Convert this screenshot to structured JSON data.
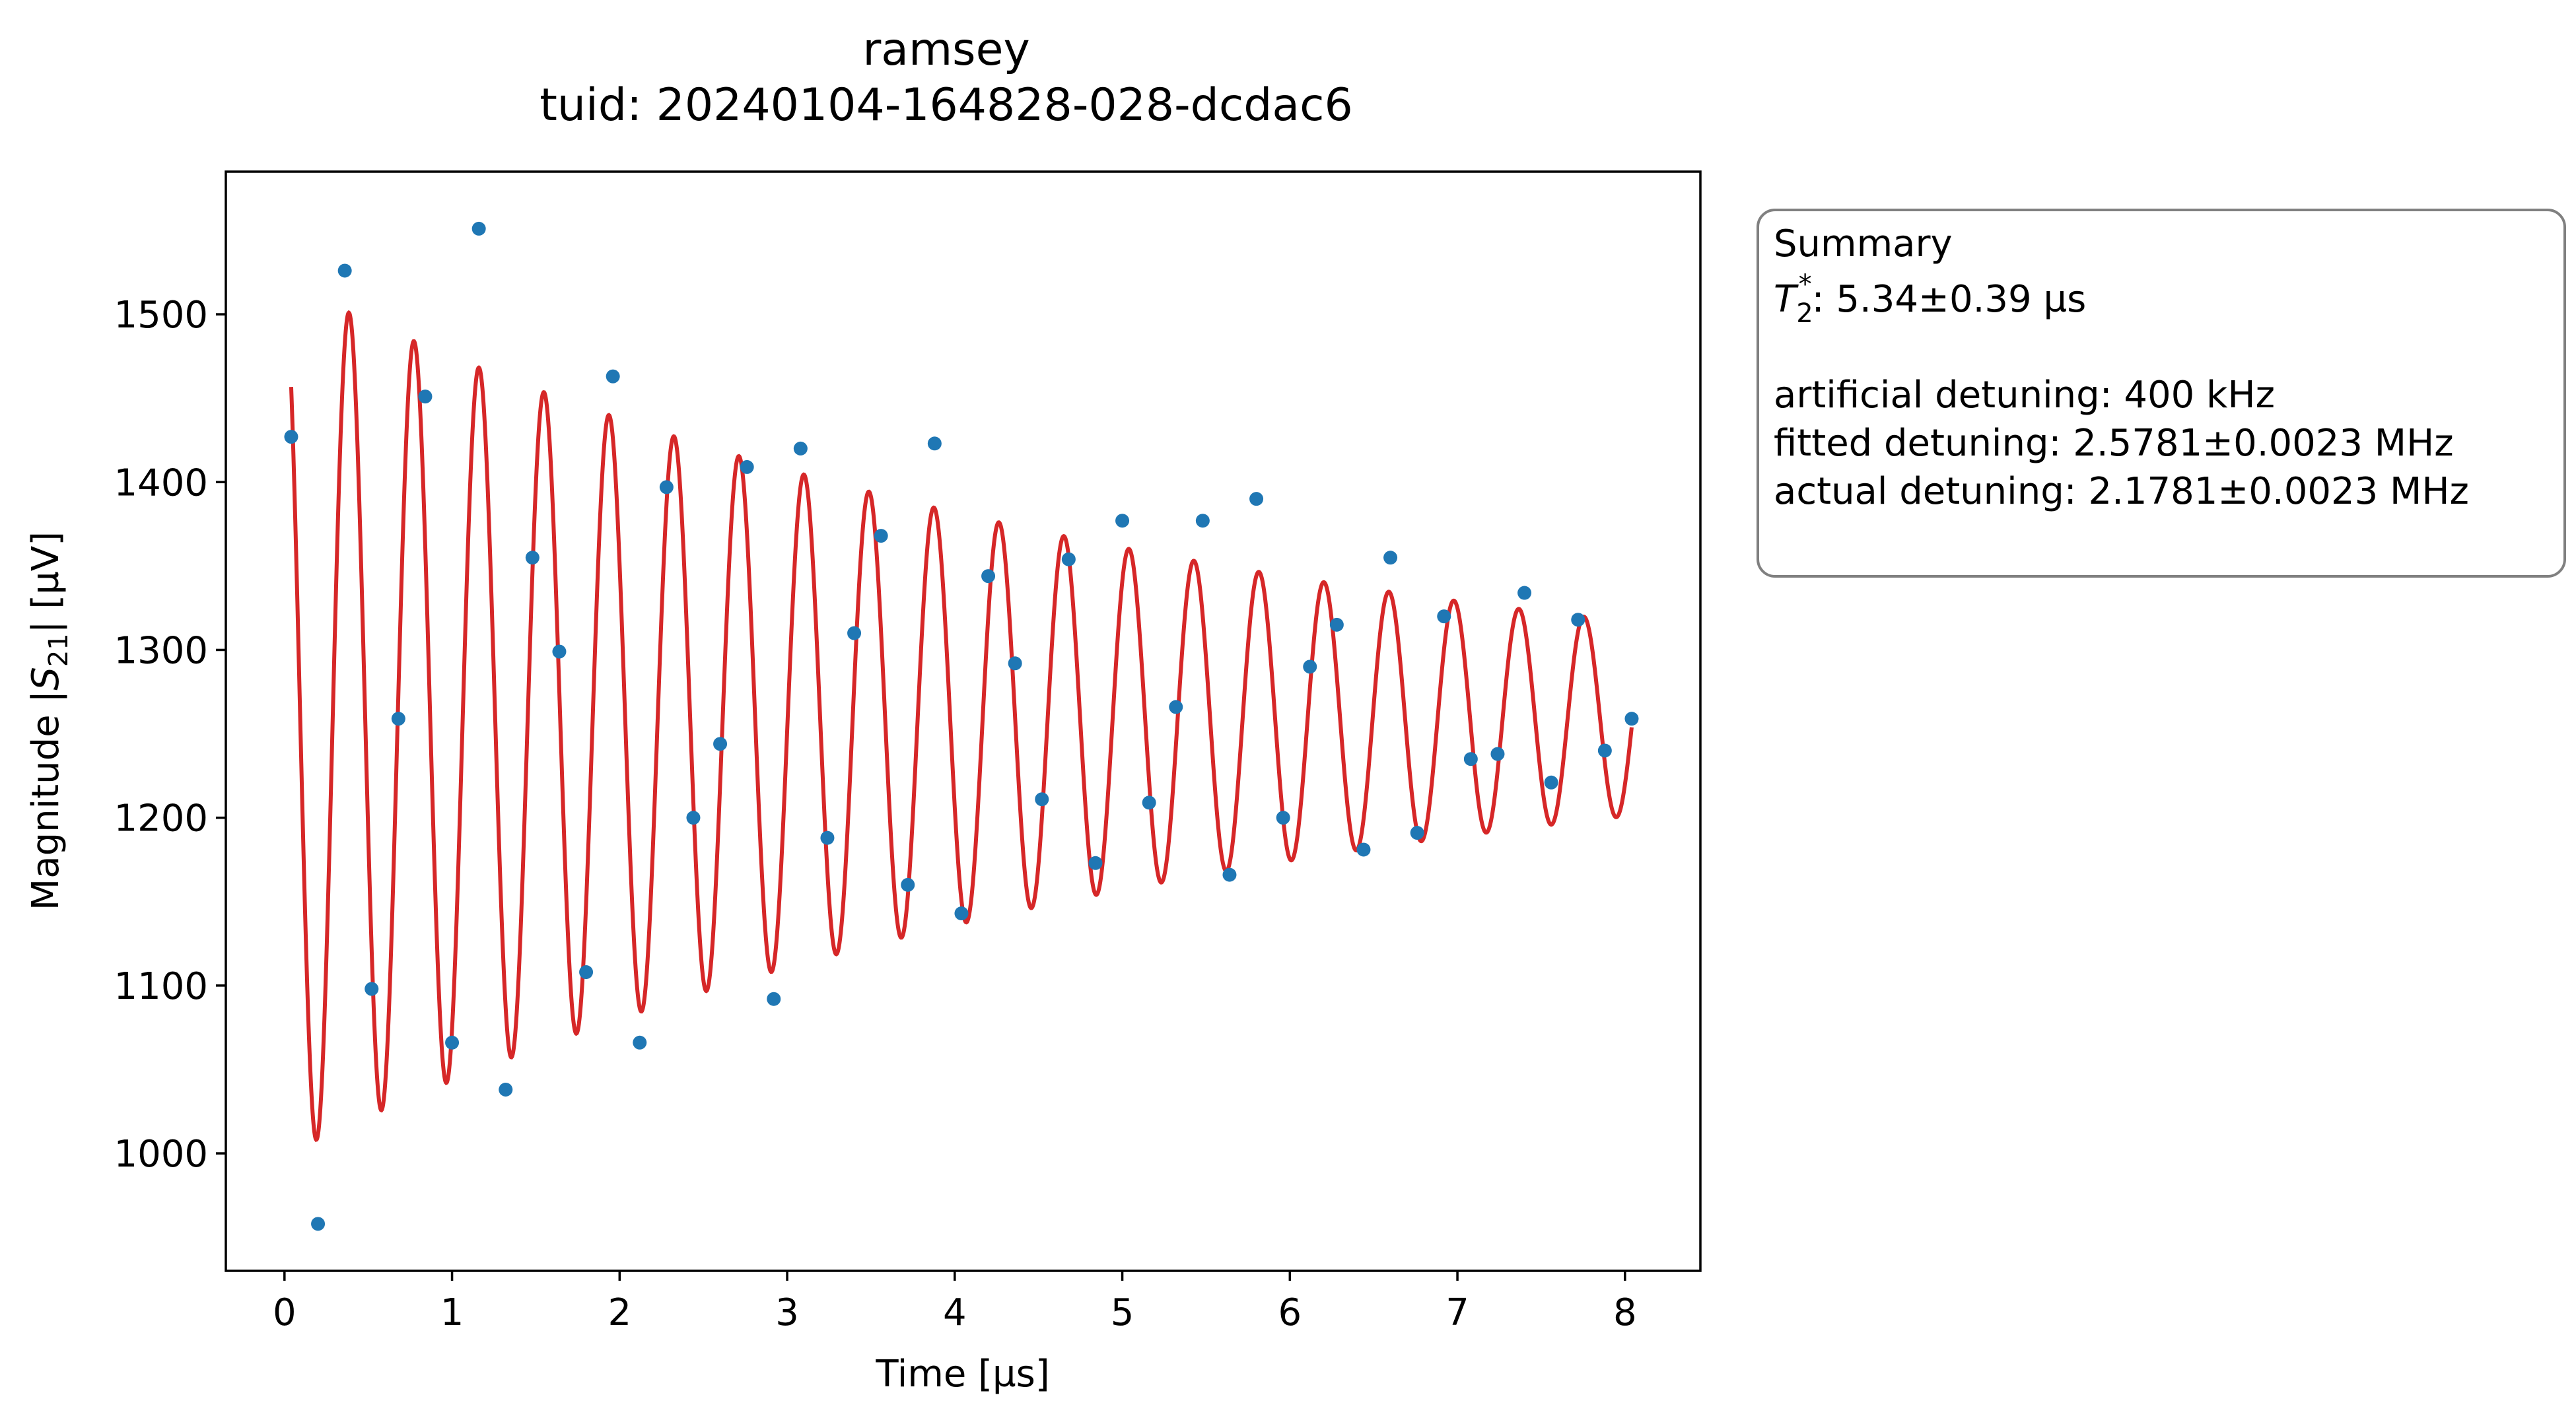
{
  "title_line1": "ramsey",
  "title_line2": "tuid: 20240104-164828-028-dcdac6",
  "summary": {
    "heading": "Summary",
    "t2_prefix": "T",
    "t2_sub": "2",
    "t2_sup": "*",
    "t2_value": ": 5.34±0.39 µs",
    "artificial": "artificial detuning: 400 kHz",
    "fitted": "fitted detuning: 2.5781±0.0023 MHz",
    "actual": "actual detuning: 2.1781±0.0023 MHz"
  },
  "chart_data": {
    "type": "scatter",
    "xlabel": "Time [µs]",
    "ylabel_prefix": "Magnitude |",
    "ylabel_var": "S",
    "ylabel_sub": "21",
    "ylabel_suffix": "| [µV]",
    "xlim": [
      -0.35,
      8.45
    ],
    "ylim": [
      930,
      1585
    ],
    "xticks": [
      0,
      1,
      2,
      3,
      4,
      5,
      6,
      7,
      8
    ],
    "yticks": [
      1000,
      1100,
      1200,
      1300,
      1400,
      1500
    ],
    "grid": false,
    "colors": {
      "data": "#1f77b4",
      "fit": "#d62728",
      "box_edge": "#808080"
    },
    "series": [
      {
        "kind": "points",
        "x": [
          0.04,
          0.2,
          0.36,
          0.52,
          0.68,
          0.84,
          1.0,
          1.16,
          1.32,
          1.48,
          1.64,
          1.8,
          1.96,
          2.12,
          2.28,
          2.44,
          2.6,
          2.76,
          2.92,
          3.08,
          3.24,
          3.4,
          3.56,
          3.72,
          3.88,
          4.04,
          4.2,
          4.36,
          4.52,
          4.68,
          4.84,
          5.0,
          5.16,
          5.32,
          5.48,
          5.64,
          5.8,
          5.96,
          6.12,
          6.28,
          6.44,
          6.6,
          6.76,
          6.92,
          7.08,
          7.24,
          7.4,
          7.56,
          7.72,
          7.88,
          8.04
        ],
        "y": [
          1427,
          958,
          1526,
          1098,
          1259,
          1451,
          1066,
          1551,
          1038,
          1355,
          1299,
          1108,
          1463,
          1066,
          1397,
          1200,
          1244,
          1409,
          1092,
          1420,
          1188,
          1310,
          1368,
          1160,
          1423,
          1143,
          1344,
          1292,
          1211,
          1354,
          1173,
          1377,
          1209,
          1266,
          1377,
          1166,
          1390,
          1200,
          1290,
          1315,
          1181,
          1355,
          1191,
          1320,
          1235,
          1238,
          1334,
          1221,
          1318,
          1240,
          1259
        ]
      },
      {
        "kind": "fit",
        "model": "offset + amplitude * exp(-t / T2) * cos(2*pi*f*t + phase)",
        "offset": 1259,
        "amplitude": 260,
        "T2": 5.34,
        "f": 2.5781,
        "phase": 0.05,
        "t_range": [
          0.04,
          8.04
        ]
      }
    ]
  }
}
